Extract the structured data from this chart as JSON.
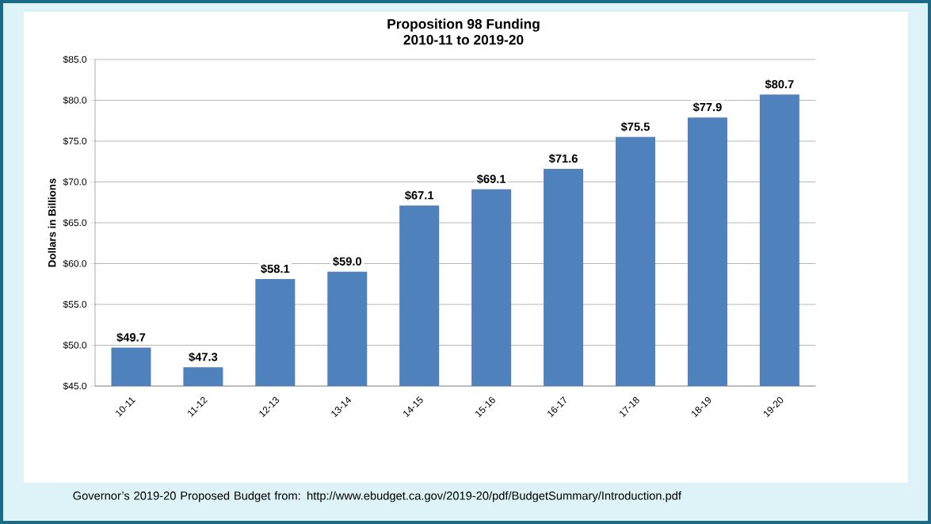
{
  "chart_data": {
    "type": "bar",
    "title": "Proposition 98 Funding",
    "subtitle": "2010-11 to 2019-20",
    "ylabel": "Dollars in Billions",
    "categories": [
      "10-11",
      "11-12",
      "12-13",
      "13-14",
      "14-15",
      "15-16",
      "16-17",
      "17-18",
      "18-19",
      "19-20"
    ],
    "values": [
      49.7,
      47.3,
      58.1,
      59.0,
      67.1,
      69.1,
      71.6,
      75.5,
      77.9,
      80.7
    ],
    "value_labels": [
      "$49.7",
      "$47.3",
      "$58.1",
      "$59.0",
      "$67.1",
      "$69.1",
      "$71.6",
      "$75.5",
      "$77.9",
      "$80.7"
    ],
    "color": "#4f81bd",
    "ylim": [
      45,
      85
    ],
    "yticks": [
      {
        "value": 45,
        "label": "$45.0"
      },
      {
        "value": 50,
        "label": "$50.0"
      },
      {
        "value": 55,
        "label": "$55.0"
      },
      {
        "value": 60,
        "label": "$60.0"
      },
      {
        "value": 65,
        "label": "$65.0"
      },
      {
        "value": 70,
        "label": "$70.0"
      },
      {
        "value": 75,
        "label": "$75.0"
      },
      {
        "value": 80,
        "label": "$80.0"
      },
      {
        "value": 85,
        "label": "$85.0"
      }
    ],
    "grid": "y",
    "annotations": [
      "Governor’s 2019-20 Proposed Budget from: http://www.ebudget.ca.gov/2019-20/pdf/BudgetSummary/Introduction.pdf"
    ]
  }
}
